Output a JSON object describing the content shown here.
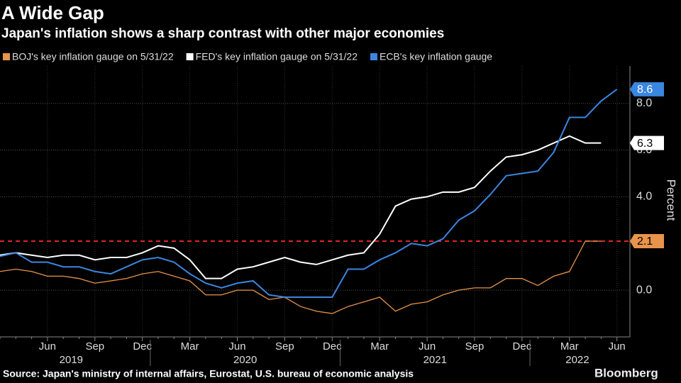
{
  "chart_data": {
    "type": "line",
    "title": "A Wide Gap",
    "subtitle": "Japan's inflation shows a sharp contrast with other major economies",
    "y_label": "Percent",
    "source": "Source: Japan's ministry of internal affairs, Eurostat, U.S. bureau of economic analysis",
    "brand": "Bloomberg",
    "categories": [
      null,
      null,
      null,
      "Jun",
      null,
      null,
      "Sep",
      null,
      null,
      "Dec",
      null,
      null,
      "Mar",
      null,
      null,
      "Jun",
      null,
      null,
      "Sep",
      null,
      null,
      "Dec",
      null,
      null,
      "Mar",
      null,
      null,
      "Jun",
      null,
      null,
      "Sep",
      null,
      null,
      "Dec",
      null,
      null,
      "Mar",
      null,
      null,
      "Jun"
    ],
    "years": [
      "2019",
      "2020",
      "2021",
      "2022"
    ],
    "series": [
      {
        "name": "BOJ's key inflation gauge on 5/31/22",
        "color": "#e8944a",
        "values": [
          0.8,
          0.9,
          0.8,
          0.6,
          0.6,
          0.5,
          0.3,
          0.4,
          0.5,
          0.7,
          0.8,
          0.6,
          0.4,
          -0.2,
          -0.2,
          0.0,
          0.0,
          -0.4,
          -0.3,
          -0.7,
          -0.9,
          -1.0,
          -0.7,
          -0.5,
          -0.3,
          -0.9,
          -0.6,
          -0.5,
          -0.2,
          0.0,
          0.1,
          0.1,
          0.5,
          0.5,
          0.2,
          0.6,
          0.8,
          2.1,
          2.1,
          null
        ]
      },
      {
        "name": "FED's key inflation gauge on 5/31/22",
        "color": "#ffffff",
        "values": [
          1.5,
          1.6,
          1.5,
          1.4,
          1.5,
          1.5,
          1.3,
          1.4,
          1.4,
          1.6,
          1.9,
          1.8,
          1.3,
          0.5,
          0.5,
          0.9,
          1.0,
          1.2,
          1.4,
          1.2,
          1.1,
          1.3,
          1.5,
          1.6,
          2.4,
          3.6,
          3.9,
          4.0,
          4.2,
          4.2,
          4.4,
          5.1,
          5.7,
          5.8,
          6.0,
          6.3,
          6.6,
          6.3,
          6.3,
          null
        ]
      },
      {
        "name": "ECB's key inflation gauge",
        "color": "#3a86e0",
        "values": [
          1.45,
          1.6,
          1.2,
          1.2,
          1.0,
          1.0,
          0.8,
          0.7,
          1.0,
          1.3,
          1.4,
          1.2,
          0.7,
          0.3,
          0.1,
          0.3,
          0.4,
          -0.2,
          -0.3,
          -0.3,
          -0.3,
          -0.3,
          0.9,
          0.9,
          1.3,
          1.6,
          2.0,
          1.9,
          2.2,
          3.0,
          3.4,
          4.1,
          4.9,
          5.0,
          5.1,
          5.9,
          7.4,
          7.4,
          8.1,
          8.6
        ]
      }
    ],
    "reference_line": {
      "value": 2.1,
      "color": "#e0262b"
    },
    "ylim": [
      -2,
      9.6
    ],
    "yticks": [
      {
        "value": 0,
        "label": "0.0"
      },
      {
        "value": 4,
        "label": "4.0"
      },
      {
        "value": 6,
        "label": "6.0"
      },
      {
        "value": 8,
        "label": "8.0"
      }
    ],
    "grid": true
  }
}
